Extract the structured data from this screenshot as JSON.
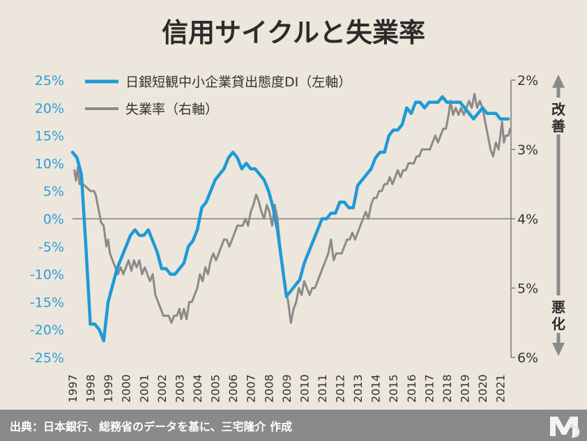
{
  "chart_data": {
    "type": "line",
    "title": "信用サイクルと失業率",
    "xlabel": "",
    "ylabel_left": "",
    "ylabel_right": "",
    "x_ticks": [
      "1997",
      "1998",
      "1999",
      "2000",
      "2001",
      "2002",
      "2003",
      "2004",
      "2005",
      "2006",
      "2007",
      "2008",
      "2009",
      "2010",
      "2011",
      "2012",
      "2013",
      "2014",
      "2015",
      "2016",
      "2017",
      "2018",
      "2019",
      "2020",
      "2021"
    ],
    "x_range": [
      1997.0,
      2021.6
    ],
    "y_left": {
      "range": [
        -25,
        25
      ],
      "ticks": [
        "25%",
        "20%",
        "15%",
        "10%",
        "5%",
        "0%",
        "-5%",
        "-10%",
        "-15%",
        "-20%",
        "-25%"
      ],
      "values": [
        25,
        20,
        15,
        10,
        5,
        0,
        -5,
        -10,
        -15,
        -20,
        -25
      ]
    },
    "y_right": {
      "range": [
        2,
        6
      ],
      "inverted": true,
      "ticks": [
        "2%",
        "3%",
        "4%",
        "5%",
        "6%"
      ],
      "values": [
        2,
        3,
        4,
        5,
        6
      ]
    },
    "legend_placement": "top-left",
    "side_labels": {
      "top": "改善",
      "bottom": "悪化"
    },
    "zero_line": true,
    "series": [
      {
        "name": "日銀短観中小企業貸出態度DI（左軸）",
        "axis": "left",
        "color": "#1f9ad6",
        "points": [
          [
            1997.0,
            12
          ],
          [
            1997.25,
            11
          ],
          [
            1997.5,
            8
          ],
          [
            1997.75,
            -5
          ],
          [
            1998.0,
            -19
          ],
          [
            1998.25,
            -19
          ],
          [
            1998.5,
            -20
          ],
          [
            1998.75,
            -22
          ],
          [
            1999.0,
            -15
          ],
          [
            1999.25,
            -12
          ],
          [
            1999.5,
            -9
          ],
          [
            1999.75,
            -7
          ],
          [
            2000.0,
            -5
          ],
          [
            2000.25,
            -3
          ],
          [
            2000.5,
            -2
          ],
          [
            2000.75,
            -3
          ],
          [
            2001.0,
            -3
          ],
          [
            2001.25,
            -2
          ],
          [
            2001.5,
            -4
          ],
          [
            2001.75,
            -6
          ],
          [
            2002.0,
            -9
          ],
          [
            2002.25,
            -9
          ],
          [
            2002.5,
            -10
          ],
          [
            2002.75,
            -10
          ],
          [
            2003.0,
            -9
          ],
          [
            2003.25,
            -8
          ],
          [
            2003.5,
            -5
          ],
          [
            2003.75,
            -4
          ],
          [
            2004.0,
            -2
          ],
          [
            2004.25,
            2
          ],
          [
            2004.5,
            3
          ],
          [
            2004.75,
            5
          ],
          [
            2005.0,
            7
          ],
          [
            2005.25,
            8
          ],
          [
            2005.5,
            9
          ],
          [
            2005.75,
            11
          ],
          [
            2006.0,
            12
          ],
          [
            2006.25,
            11
          ],
          [
            2006.5,
            9
          ],
          [
            2006.75,
            10
          ],
          [
            2007.0,
            9
          ],
          [
            2007.25,
            9
          ],
          [
            2007.5,
            8
          ],
          [
            2007.75,
            7
          ],
          [
            2008.0,
            5
          ],
          [
            2008.25,
            2
          ],
          [
            2008.5,
            -2
          ],
          [
            2008.75,
            -8
          ],
          [
            2009.0,
            -14
          ],
          [
            2009.25,
            -13
          ],
          [
            2009.5,
            -12
          ],
          [
            2009.75,
            -11
          ],
          [
            2010.0,
            -8
          ],
          [
            2010.25,
            -6
          ],
          [
            2010.5,
            -4
          ],
          [
            2010.75,
            -2
          ],
          [
            2011.0,
            0
          ],
          [
            2011.25,
            0
          ],
          [
            2011.5,
            1
          ],
          [
            2011.75,
            1
          ],
          [
            2012.0,
            3
          ],
          [
            2012.25,
            3
          ],
          [
            2012.5,
            2
          ],
          [
            2012.75,
            2
          ],
          [
            2013.0,
            6
          ],
          [
            2013.25,
            7
          ],
          [
            2013.5,
            8
          ],
          [
            2013.75,
            9
          ],
          [
            2014.0,
            11
          ],
          [
            2014.25,
            12
          ],
          [
            2014.5,
            12
          ],
          [
            2014.75,
            15
          ],
          [
            2015.0,
            16
          ],
          [
            2015.25,
            16
          ],
          [
            2015.5,
            17
          ],
          [
            2015.75,
            20
          ],
          [
            2016.0,
            19
          ],
          [
            2016.25,
            21
          ],
          [
            2016.5,
            21
          ],
          [
            2016.75,
            20
          ],
          [
            2017.0,
            21
          ],
          [
            2017.25,
            21
          ],
          [
            2017.5,
            21
          ],
          [
            2017.75,
            22
          ],
          [
            2018.0,
            21
          ],
          [
            2018.25,
            21
          ],
          [
            2018.5,
            21
          ],
          [
            2018.75,
            21
          ],
          [
            2019.0,
            20
          ],
          [
            2019.25,
            19
          ],
          [
            2019.5,
            18
          ],
          [
            2019.75,
            19
          ],
          [
            2020.0,
            20
          ],
          [
            2020.25,
            19
          ],
          [
            2020.5,
            19
          ],
          [
            2020.75,
            19
          ],
          [
            2021.0,
            18
          ],
          [
            2021.25,
            18
          ],
          [
            2021.45,
            18
          ]
        ]
      },
      {
        "name": "失業率（右軸）",
        "axis": "right",
        "color": "#8a8a8a",
        "points": [
          [
            1997.1,
            3.3
          ],
          [
            1997.2,
            3.45
          ],
          [
            1997.3,
            3.25
          ],
          [
            1997.4,
            3.5
          ],
          [
            1997.6,
            3.5
          ],
          [
            1997.8,
            3.55
          ],
          [
            1998.0,
            3.6
          ],
          [
            1998.2,
            3.6
          ],
          [
            1998.3,
            3.65
          ],
          [
            1998.45,
            3.85
          ],
          [
            1998.6,
            4.05
          ],
          [
            1998.75,
            4.1
          ],
          [
            1998.9,
            4.4
          ],
          [
            1999.0,
            4.3
          ],
          [
            1999.1,
            4.5
          ],
          [
            1999.25,
            4.6
          ],
          [
            1999.4,
            4.7
          ],
          [
            1999.55,
            4.8
          ],
          [
            1999.7,
            4.7
          ],
          [
            1999.85,
            4.8
          ],
          [
            2000.0,
            4.7
          ],
          [
            2000.15,
            4.6
          ],
          [
            2000.3,
            4.75
          ],
          [
            2000.45,
            4.6
          ],
          [
            2000.6,
            4.7
          ],
          [
            2000.75,
            4.6
          ],
          [
            2000.9,
            4.8
          ],
          [
            2001.05,
            4.7
          ],
          [
            2001.2,
            4.8
          ],
          [
            2001.35,
            4.9
          ],
          [
            2001.5,
            4.8
          ],
          [
            2001.65,
            5.1
          ],
          [
            2001.8,
            5.2
          ],
          [
            2001.95,
            5.3
          ],
          [
            2002.1,
            5.4
          ],
          [
            2002.25,
            5.4
          ],
          [
            2002.4,
            5.4
          ],
          [
            2002.55,
            5.5
          ],
          [
            2002.7,
            5.4
          ],
          [
            2002.85,
            5.4
          ],
          [
            2003.0,
            5.3
          ],
          [
            2003.1,
            5.45
          ],
          [
            2003.25,
            5.3
          ],
          [
            2003.4,
            5.45
          ],
          [
            2003.55,
            5.2
          ],
          [
            2003.7,
            5.2
          ],
          [
            2003.85,
            5.1
          ],
          [
            2004.0,
            5.0
          ],
          [
            2004.15,
            4.8
          ],
          [
            2004.3,
            4.9
          ],
          [
            2004.45,
            4.7
          ],
          [
            2004.6,
            4.8
          ],
          [
            2004.75,
            4.6
          ],
          [
            2004.9,
            4.5
          ],
          [
            2005.05,
            4.6
          ],
          [
            2005.2,
            4.5
          ],
          [
            2005.35,
            4.4
          ],
          [
            2005.5,
            4.3
          ],
          [
            2005.65,
            4.3
          ],
          [
            2005.8,
            4.4
          ],
          [
            2005.95,
            4.3
          ],
          [
            2006.1,
            4.2
          ],
          [
            2006.25,
            4.1
          ],
          [
            2006.4,
            4.1
          ],
          [
            2006.55,
            4.1
          ],
          [
            2006.7,
            4.0
          ],
          [
            2006.85,
            4.1
          ],
          [
            2007.0,
            3.9
          ],
          [
            2007.15,
            3.8
          ],
          [
            2007.3,
            3.65
          ],
          [
            2007.45,
            3.75
          ],
          [
            2007.6,
            3.9
          ],
          [
            2007.75,
            4.0
          ],
          [
            2007.9,
            3.8
          ],
          [
            2008.05,
            3.9
          ],
          [
            2008.2,
            4.1
          ],
          [
            2008.35,
            3.8
          ],
          [
            2008.5,
            4.0
          ],
          [
            2008.65,
            4.4
          ],
          [
            2008.8,
            4.7
          ],
          [
            2008.95,
            5.0
          ],
          [
            2009.1,
            5.2
          ],
          [
            2009.25,
            5.5
          ],
          [
            2009.4,
            5.3
          ],
          [
            2009.55,
            5.2
          ],
          [
            2009.7,
            5.0
          ],
          [
            2009.85,
            5.1
          ],
          [
            2010.0,
            4.9
          ],
          [
            2010.15,
            5.0
          ],
          [
            2010.3,
            5.1
          ],
          [
            2010.45,
            5.0
          ],
          [
            2010.6,
            5.0
          ],
          [
            2010.75,
            4.9
          ],
          [
            2010.9,
            4.8
          ],
          [
            2011.05,
            4.7
          ],
          [
            2011.2,
            4.6
          ],
          [
            2011.35,
            4.5
          ],
          [
            2011.5,
            4.3
          ],
          [
            2011.65,
            4.6
          ],
          [
            2011.8,
            4.5
          ],
          [
            2011.95,
            4.5
          ],
          [
            2012.1,
            4.5
          ],
          [
            2012.25,
            4.4
          ],
          [
            2012.4,
            4.3
          ],
          [
            2012.55,
            4.3
          ],
          [
            2012.7,
            4.2
          ],
          [
            2012.85,
            4.3
          ],
          [
            2013.0,
            4.2
          ],
          [
            2013.15,
            4.1
          ],
          [
            2013.3,
            4.0
          ],
          [
            2013.45,
            3.9
          ],
          [
            2013.6,
            4.0
          ],
          [
            2013.75,
            3.8
          ],
          [
            2013.9,
            3.7
          ],
          [
            2014.05,
            3.7
          ],
          [
            2014.2,
            3.6
          ],
          [
            2014.35,
            3.6
          ],
          [
            2014.5,
            3.5
          ],
          [
            2014.65,
            3.5
          ],
          [
            2014.8,
            3.4
          ],
          [
            2014.95,
            3.5
          ],
          [
            2015.1,
            3.4
          ],
          [
            2015.25,
            3.3
          ],
          [
            2015.4,
            3.4
          ],
          [
            2015.55,
            3.3
          ],
          [
            2015.7,
            3.3
          ],
          [
            2015.85,
            3.2
          ],
          [
            2016.0,
            3.2
          ],
          [
            2016.15,
            3.2
          ],
          [
            2016.3,
            3.1
          ],
          [
            2016.45,
            3.1
          ],
          [
            2016.6,
            3.0
          ],
          [
            2016.75,
            3.0
          ],
          [
            2016.9,
            3.0
          ],
          [
            2017.05,
            3.0
          ],
          [
            2017.2,
            2.9
          ],
          [
            2017.35,
            2.8
          ],
          [
            2017.5,
            2.9
          ],
          [
            2017.65,
            2.8
          ],
          [
            2017.8,
            2.7
          ],
          [
            2017.95,
            2.7
          ],
          [
            2018.1,
            2.5
          ],
          [
            2018.2,
            2.3
          ],
          [
            2018.35,
            2.5
          ],
          [
            2018.5,
            2.4
          ],
          [
            2018.65,
            2.5
          ],
          [
            2018.8,
            2.4
          ],
          [
            2018.95,
            2.5
          ],
          [
            2019.1,
            2.4
          ],
          [
            2019.25,
            2.3
          ],
          [
            2019.4,
            2.4
          ],
          [
            2019.55,
            2.2
          ],
          [
            2019.7,
            2.4
          ],
          [
            2019.85,
            2.3
          ],
          [
            2020.0,
            2.4
          ],
          [
            2020.15,
            2.6
          ],
          [
            2020.3,
            2.8
          ],
          [
            2020.45,
            3.0
          ],
          [
            2020.6,
            3.1
          ],
          [
            2020.75,
            2.9
          ],
          [
            2020.9,
            3.0
          ],
          [
            2021.0,
            2.8
          ],
          [
            2021.1,
            2.6
          ],
          [
            2021.2,
            2.9
          ],
          [
            2021.3,
            2.8
          ],
          [
            2021.45,
            2.8
          ],
          [
            2021.55,
            2.7
          ]
        ]
      }
    ]
  },
  "footer": {
    "source": "出典：日本銀行、総務省のデータを基に、三宅隆介 作成"
  }
}
